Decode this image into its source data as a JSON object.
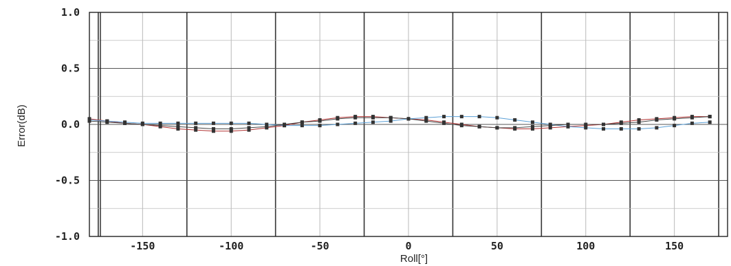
{
  "chart_data": {
    "type": "line",
    "title": "",
    "xlabel": "Roll[°]",
    "ylabel": "Error(dB)",
    "xlim": [
      -180,
      180
    ],
    "ylim": [
      -1.0,
      1.0
    ],
    "x_ticks": [
      "-150",
      "-100",
      "-50",
      "0",
      "50",
      "100",
      "150"
    ],
    "x_tick_values": [
      -150,
      -100,
      -50,
      0,
      50,
      100,
      150
    ],
    "y_ticks": [
      "1.0",
      "0.5",
      "0.0",
      "-0.5",
      "-1.0"
    ],
    "y_tick_values": [
      1.0,
      0.5,
      0.0,
      -0.5,
      -1.0
    ],
    "grid": true,
    "x": [
      -180,
      -170,
      -160,
      -150,
      -140,
      -130,
      -120,
      -110,
      -100,
      -90,
      -80,
      -70,
      -60,
      -50,
      -40,
      -30,
      -20,
      -10,
      0,
      10,
      20,
      30,
      40,
      50,
      60,
      70,
      80,
      90,
      100,
      110,
      120,
      130,
      140,
      150,
      160,
      170
    ],
    "series": [
      {
        "values": [
          0.05,
          0.03,
          0.01,
          0.0,
          -0.02,
          -0.04,
          -0.05,
          -0.06,
          -0.06,
          -0.05,
          -0.03,
          -0.01,
          0.02,
          0.04,
          0.06,
          0.07,
          0.07,
          0.06,
          0.05,
          0.04,
          0.02,
          0.0,
          -0.02,
          -0.03,
          -0.04,
          -0.04,
          -0.03,
          -0.02,
          -0.01,
          0.0,
          0.02,
          0.04,
          0.05,
          0.06,
          0.07,
          0.07
        ],
        "color": "#b03030"
      },
      {
        "values": [
          0.04,
          0.03,
          0.02,
          0.01,
          0.01,
          0.01,
          0.01,
          0.01,
          0.01,
          0.01,
          0.0,
          -0.01,
          -0.01,
          -0.01,
          0.0,
          0.01,
          0.02,
          0.03,
          0.05,
          0.06,
          0.07,
          0.07,
          0.07,
          0.06,
          0.04,
          0.02,
          0.0,
          -0.02,
          -0.03,
          -0.04,
          -0.04,
          -0.04,
          -0.03,
          -0.01,
          0.01,
          0.02
        ],
        "color": "#5a9fd6"
      },
      {
        "values": [
          0.03,
          0.02,
          0.01,
          0.0,
          -0.01,
          -0.02,
          -0.03,
          -0.04,
          -0.04,
          -0.03,
          -0.02,
          0.0,
          0.02,
          0.03,
          0.05,
          0.06,
          0.06,
          0.06,
          0.05,
          0.03,
          0.01,
          -0.01,
          -0.02,
          -0.03,
          -0.03,
          -0.02,
          -0.01,
          0.0,
          0.0,
          0.0,
          0.01,
          0.02,
          0.04,
          0.05,
          0.06,
          0.07
        ],
        "color": "#444444"
      }
    ]
  }
}
